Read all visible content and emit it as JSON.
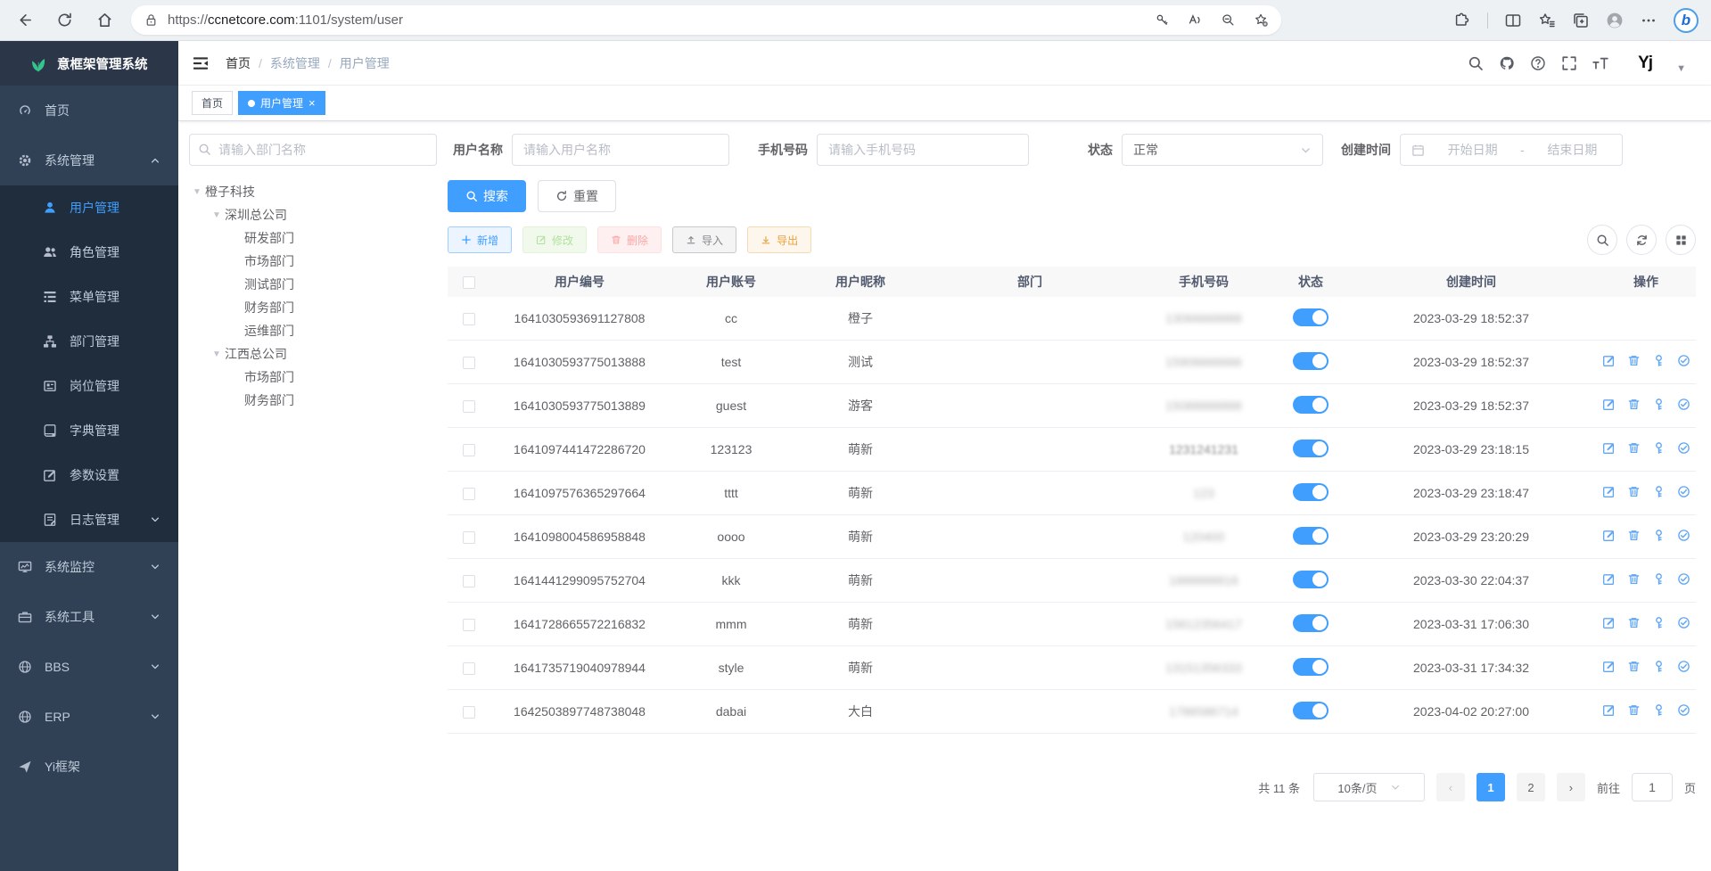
{
  "browser": {
    "url_scheme": "https://",
    "url_host": "ccnetcore.com",
    "url_path": ":1101/system/user"
  },
  "app": {
    "logo_title": "意框架管理系统",
    "avatar_text": "Yj"
  },
  "breadcrumb": [
    "首页",
    "系统管理",
    "用户管理"
  ],
  "tabs": [
    {
      "label": "首页",
      "active": false
    },
    {
      "label": "用户管理",
      "active": true
    }
  ],
  "sidebar": {
    "items": [
      {
        "name": "home",
        "label": "首页",
        "icon": "dashboard",
        "type": "root"
      },
      {
        "name": "system-management",
        "label": "系统管理",
        "icon": "gear",
        "type": "root",
        "arrow": "up"
      },
      {
        "name": "user-management",
        "label": "用户管理",
        "icon": "user",
        "type": "sub",
        "active": true
      },
      {
        "name": "role-management",
        "label": "角色管理",
        "icon": "peoples",
        "type": "sub"
      },
      {
        "name": "menu-management",
        "label": "菜单管理",
        "icon": "treetable",
        "type": "sub"
      },
      {
        "name": "dept-management",
        "label": "部门管理",
        "icon": "tree",
        "type": "sub"
      },
      {
        "name": "post-management",
        "label": "岗位管理",
        "icon": "post",
        "type": "sub"
      },
      {
        "name": "dict-management",
        "label": "字典管理",
        "icon": "dict",
        "type": "sub"
      },
      {
        "name": "param-settings",
        "label": "参数设置",
        "icon": "edit",
        "type": "sub"
      },
      {
        "name": "log-management",
        "label": "日志管理",
        "icon": "log",
        "type": "sub",
        "arrow": "down"
      },
      {
        "name": "system-monitor",
        "label": "系统监控",
        "icon": "monitor",
        "type": "root",
        "arrow": "down"
      },
      {
        "name": "system-tools",
        "label": "系统工具",
        "icon": "tool",
        "type": "root",
        "arrow": "down"
      },
      {
        "name": "bbs",
        "label": "BBS",
        "icon": "globe",
        "type": "root",
        "arrow": "down"
      },
      {
        "name": "erp",
        "label": "ERP",
        "icon": "globe",
        "type": "root",
        "arrow": "down"
      },
      {
        "name": "yi-framework",
        "label": "Yi框架",
        "icon": "plane",
        "type": "root"
      }
    ]
  },
  "filters": {
    "dept_placeholder": "请输入部门名称",
    "username_label": "用户名称",
    "username_placeholder": "请输入用户名称",
    "phone_label": "手机号码",
    "phone_placeholder": "请输入手机号码",
    "status_label": "状态",
    "status_value": "正常",
    "created_label": "创建时间",
    "date_start_placeholder": "开始日期",
    "date_separator": "-",
    "date_end_placeholder": "结束日期"
  },
  "buttons": {
    "search": "搜索",
    "reset": "重置",
    "add": "新增",
    "modify": "修改",
    "delete": "删除",
    "import": "导入",
    "export": "导出"
  },
  "tree": [
    {
      "name": "company-root",
      "label": "橙子科技",
      "level": 0,
      "expandable": true
    },
    {
      "name": "shenzhen-hq",
      "label": "深圳总公司",
      "level": 1,
      "expandable": true
    },
    {
      "name": "rd-dept",
      "label": "研发部门",
      "level": 2
    },
    {
      "name": "market-dept-sz",
      "label": "市场部门",
      "level": 2
    },
    {
      "name": "test-dept",
      "label": "测试部门",
      "level": 2
    },
    {
      "name": "finance-dept-sz",
      "label": "财务部门",
      "level": 2
    },
    {
      "name": "ops-dept",
      "label": "运维部门",
      "level": 2
    },
    {
      "name": "jiangxi-hq",
      "label": "江西总公司",
      "level": 1,
      "expandable": true
    },
    {
      "name": "market-dept-jx",
      "label": "市场部门",
      "level": 2
    },
    {
      "name": "finance-dept-jx",
      "label": "财务部门",
      "level": 2
    }
  ],
  "table": {
    "columns": [
      "用户编号",
      "用户账号",
      "用户昵称",
      "部门",
      "手机号码",
      "状态",
      "创建时间",
      "操作"
    ],
    "rows": [
      {
        "id": "1641030593691127808",
        "account": "cc",
        "nickname": "橙子",
        "dept": "",
        "phone": "13066668888",
        "phone_blur": "heavy",
        "status": true,
        "created": "2023-03-29 18:52:37",
        "actions": false
      },
      {
        "id": "1641030593775013888",
        "account": "test",
        "nickname": "测试",
        "dept": "",
        "phone": "15906666666",
        "phone_blur": "heavy",
        "status": true,
        "created": "2023-03-29 18:52:37",
        "actions": true
      },
      {
        "id": "1641030593775013889",
        "account": "guest",
        "nickname": "游客",
        "dept": "",
        "phone": "15088888888",
        "phone_blur": "heavy",
        "status": true,
        "created": "2023-03-29 18:52:37",
        "actions": true
      },
      {
        "id": "1641097441472286720",
        "account": "123123",
        "nickname": "萌新",
        "dept": "",
        "phone": "1231241231",
        "phone_blur": "lite",
        "status": true,
        "created": "2023-03-29 23:18:15",
        "actions": true
      },
      {
        "id": "1641097576365297664",
        "account": "tttt",
        "nickname": "萌新",
        "dept": "",
        "phone": "123",
        "phone_blur": "heavy",
        "status": true,
        "created": "2023-03-29 23:18:47",
        "actions": true
      },
      {
        "id": "1641098004586958848",
        "account": "oooo",
        "nickname": "萌新",
        "dept": "",
        "phone": "120400",
        "phone_blur": "heavy",
        "status": true,
        "created": "2023-03-29 23:20:29",
        "actions": true
      },
      {
        "id": "1641441299095752704",
        "account": "kkk",
        "nickname": "萌新",
        "dept": "",
        "phone": "1888888816",
        "phone_blur": "heavy",
        "status": true,
        "created": "2023-03-30 22:04:37",
        "actions": true
      },
      {
        "id": "1641728665572216832",
        "account": "mmm",
        "nickname": "萌新",
        "dept": "",
        "phone": "15612356417",
        "phone_blur": "heavy",
        "status": true,
        "created": "2023-03-31 17:06:30",
        "actions": true
      },
      {
        "id": "1641735719040978944",
        "account": "style",
        "nickname": "萌新",
        "dept": "",
        "phone": "13151356333",
        "phone_blur": "heavy",
        "status": true,
        "created": "2023-03-31 17:34:32",
        "actions": true
      },
      {
        "id": "1642503897748738048",
        "account": "dabai",
        "nickname": "大白",
        "dept": "",
        "phone": "1786586714",
        "phone_blur": "heavy",
        "status": true,
        "created": "2023-04-02 20:27:00",
        "actions": true
      }
    ]
  },
  "pagination": {
    "total_text": "共 11 条",
    "page_size": "10条/页",
    "pages": [
      "1",
      "2"
    ],
    "current": "1",
    "goto_label": "前往",
    "goto_value": "1",
    "goto_suffix": "页"
  },
  "colors": {
    "primary": "#409eff",
    "sidebar_bg": "#304156",
    "sidebar_sub_bg": "#1f2d3d",
    "success": "#b3e19d",
    "danger": "#f9a7a7",
    "warning": "#e6a23c"
  }
}
